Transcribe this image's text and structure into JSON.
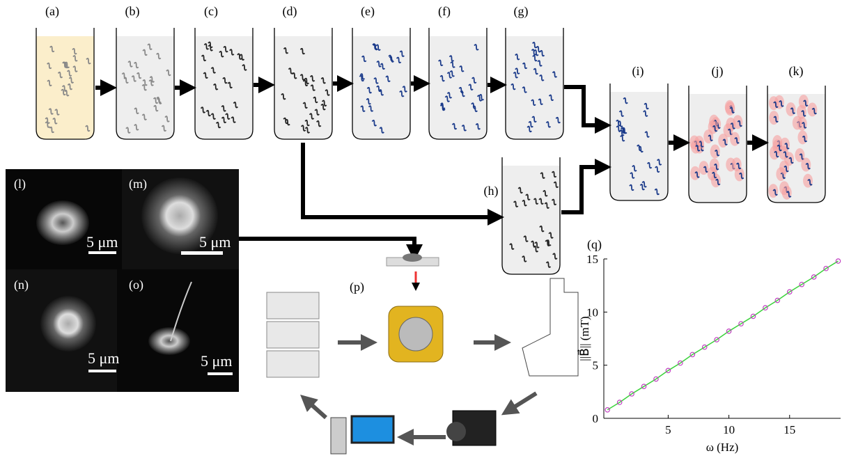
{
  "panels": {
    "a": "(a)",
    "b": "(b)",
    "c": "(c)",
    "d": "(d)",
    "e": "(e)",
    "f": "(f)",
    "g": "(g)",
    "h": "(h)",
    "i": "(i)",
    "j": "(j)",
    "k": "(k)",
    "l": "(l)",
    "m": "(m)",
    "n": "(n)",
    "o": "(o)",
    "p": "(p)",
    "q": "(q)"
  },
  "scale_bars": [
    "5 μm",
    "5 μm",
    "5 μm",
    "5 μm"
  ],
  "chart_data": {
    "type": "line",
    "xlabel": "ω (Hz)",
    "ylabel": "||B⃗|| (mT)",
    "x": [
      0,
      1,
      2,
      3,
      4,
      5,
      6,
      7,
      8,
      9,
      10,
      11,
      12,
      13,
      14,
      15,
      16,
      17,
      18,
      19
    ],
    "values": [
      0.8,
      1.5,
      2.3,
      3.0,
      3.7,
      4.5,
      5.2,
      6.0,
      6.7,
      7.4,
      8.2,
      8.9,
      9.6,
      10.4,
      11.1,
      11.9,
      12.6,
      13.3,
      14.1,
      14.8
    ],
    "color": "#c040c0",
    "line_color": "#3ad23a",
    "xlim": [
      -0.3,
      19.2
    ],
    "ylim": [
      0,
      15
    ],
    "xticks": [
      5,
      10,
      15
    ],
    "yticks": [
      0,
      5,
      10,
      15
    ]
  }
}
